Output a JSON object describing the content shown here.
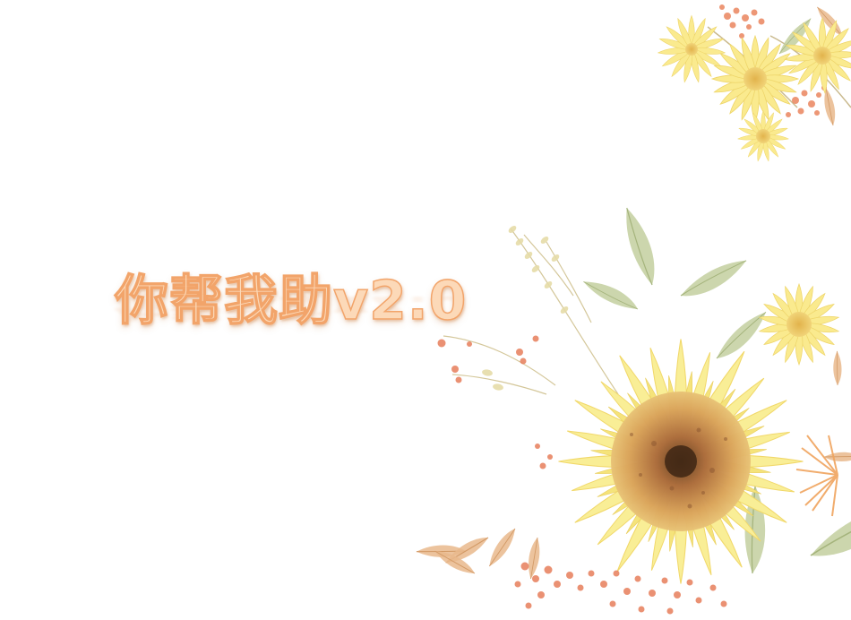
{
  "title": {
    "text": "你帮我助v2.0"
  },
  "decoration": {
    "main_flower": "sunflower-watercolor",
    "accent_flowers": "yellow-daisy",
    "berries": "orange-berry-sprigs"
  },
  "colors": {
    "background": "#ffffff",
    "title_fill": "#fcd9b8",
    "title_outline": "#f2a46a",
    "petal_yellow": "#f7ea8c",
    "sunflower_center": "#b8703c",
    "leaf_green": "#b8c79a",
    "berry_orange": "#e9805a"
  }
}
